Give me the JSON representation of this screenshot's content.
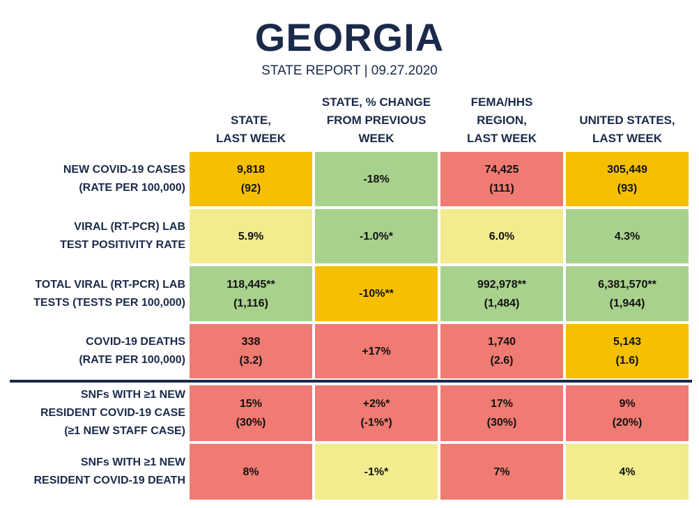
{
  "title": "GEORGIA",
  "subtitle": "STATE REPORT | 09.27.2020",
  "columns": [
    "STATE,\nLAST WEEK",
    "STATE, % CHANGE\nFROM PREVIOUS\nWEEK",
    "FEMA/HHS\nREGION,\nLAST WEEK",
    "UNITED STATES,\nLAST WEEK"
  ],
  "rows": [
    {
      "label": "NEW COVID-19 CASES\n(RATE PER 100,000)",
      "cells": [
        {
          "value": "9,818\n(92)",
          "color": "#f5c000"
        },
        {
          "value": "-18%",
          "color": "#a9d18e"
        },
        {
          "value": "74,425\n(111)",
          "color": "#f07b72"
        },
        {
          "value": "305,449\n(93)",
          "color": "#f5c000"
        }
      ]
    },
    {
      "label": "VIRAL (RT-PCR) LAB\nTEST POSITIVITY RATE",
      "cells": [
        {
          "value": "5.9%",
          "color": "#f2ec8f"
        },
        {
          "value": "-1.0%*",
          "color": "#a9d18e"
        },
        {
          "value": "6.0%",
          "color": "#f2ec8f"
        },
        {
          "value": "4.3%",
          "color": "#a9d18e"
        }
      ]
    },
    {
      "label": "TOTAL VIRAL (RT-PCR) LAB\nTESTS (TESTS PER 100,000)",
      "cells": [
        {
          "value": "118,445**\n(1,116)",
          "color": "#a9d18e"
        },
        {
          "value": "-10%**",
          "color": "#f5c000"
        },
        {
          "value": "992,978**\n(1,484)",
          "color": "#a9d18e"
        },
        {
          "value": "6,381,570**\n(1,944)",
          "color": "#a9d18e"
        }
      ]
    },
    {
      "label": "COVID-19 DEATHS\n(RATE PER 100,000)",
      "cells": [
        {
          "value": "338\n(3.2)",
          "color": "#f07b72"
        },
        {
          "value": "+17%",
          "color": "#f07b72"
        },
        {
          "value": "1,740\n(2.6)",
          "color": "#f07b72"
        },
        {
          "value": "5,143\n(1.6)",
          "color": "#f5c000"
        }
      ]
    },
    {
      "label": "SNFs WITH ≥1 NEW\nRESIDENT COVID-19 CASE\n(≥1 NEW STAFF CASE)",
      "cells": [
        {
          "value": "15%\n(30%)",
          "color": "#f07b72"
        },
        {
          "value": "+2%*\n(-1%*)",
          "color": "#f07b72"
        },
        {
          "value": "17%\n(30%)",
          "color": "#f07b72"
        },
        {
          "value": "9%\n(20%)",
          "color": "#f07b72"
        }
      ]
    },
    {
      "label": "SNFs WITH ≥1 NEW\nRESIDENT COVID-19 DEATH",
      "cells": [
        {
          "value": "8%",
          "color": "#f07b72"
        },
        {
          "value": "-1%*",
          "color": "#f2ec8f"
        },
        {
          "value": "7%",
          "color": "#f07b72"
        },
        {
          "value": "4%",
          "color": "#f2ec8f"
        }
      ]
    }
  ]
}
